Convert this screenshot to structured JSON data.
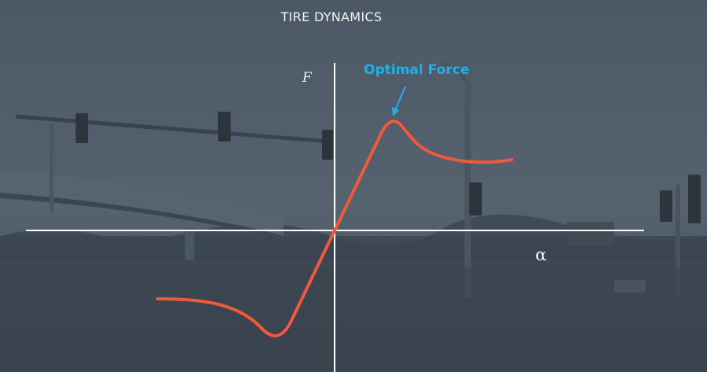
{
  "title": "TIRE DYNAMICS",
  "y_axis_label": "F",
  "x_axis_label": "α",
  "annotation": "Optimal Force",
  "colors": {
    "curve": "#ef5a3c",
    "annotation": "#21b0e6",
    "axes": "#ffffff",
    "text": "#f1f3f5",
    "background": "#44505c"
  }
}
